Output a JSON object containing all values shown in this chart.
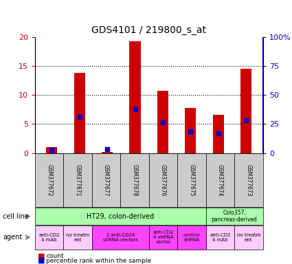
{
  "title": "GDS4101 / 219800_s_at",
  "samples": [
    "GSM377672",
    "GSM377671",
    "GSM377677",
    "GSM377678",
    "GSM377676",
    "GSM377675",
    "GSM377674",
    "GSM377673"
  ],
  "counts": [
    1.0,
    13.8,
    0.2,
    19.3,
    10.7,
    7.8,
    6.6,
    14.5
  ],
  "percentiles": [
    2.5,
    31.0,
    3.5,
    37.5,
    26.5,
    18.5,
    17.0,
    28.5
  ],
  "ylim_left": [
    0,
    20
  ],
  "ylim_right": [
    0,
    100
  ],
  "left_ticks": [
    0,
    5,
    10,
    15,
    20
  ],
  "right_ticks": [
    0,
    25,
    50,
    75,
    100
  ],
  "left_tick_labels": [
    "0",
    "5",
    "10",
    "15",
    "20"
  ],
  "right_tick_labels": [
    "0",
    "25",
    "50",
    "75",
    "100%"
  ],
  "bar_color": "#cc0000",
  "percentile_color": "#0000cc",
  "bar_width": 0.4,
  "sample_box_color": "#cccccc",
  "legend_count_label": "count",
  "legend_pct_label": "percentile rank within the sample",
  "agent_configs": [
    {
      "label": "anti-CD2\n4 mAb",
      "span": 1,
      "color": "#ffccff"
    },
    {
      "label": "no treatm\nent",
      "span": 1,
      "color": "#ffccff"
    },
    {
      "label": "2 anti-CD24\nshRNA vectors",
      "span": 2,
      "color": "#ff44ff"
    },
    {
      "label": "anti-CD2\n4 shRNA\nvector",
      "span": 1,
      "color": "#ff44ff"
    },
    {
      "label": "control\nshRNA",
      "span": 1,
      "color": "#ff44ff"
    },
    {
      "label": "anti-CD2\n4 mAb",
      "span": 1,
      "color": "#ffccff"
    },
    {
      "label": "no treatm\nent",
      "span": 1,
      "color": "#ffccff"
    }
  ]
}
